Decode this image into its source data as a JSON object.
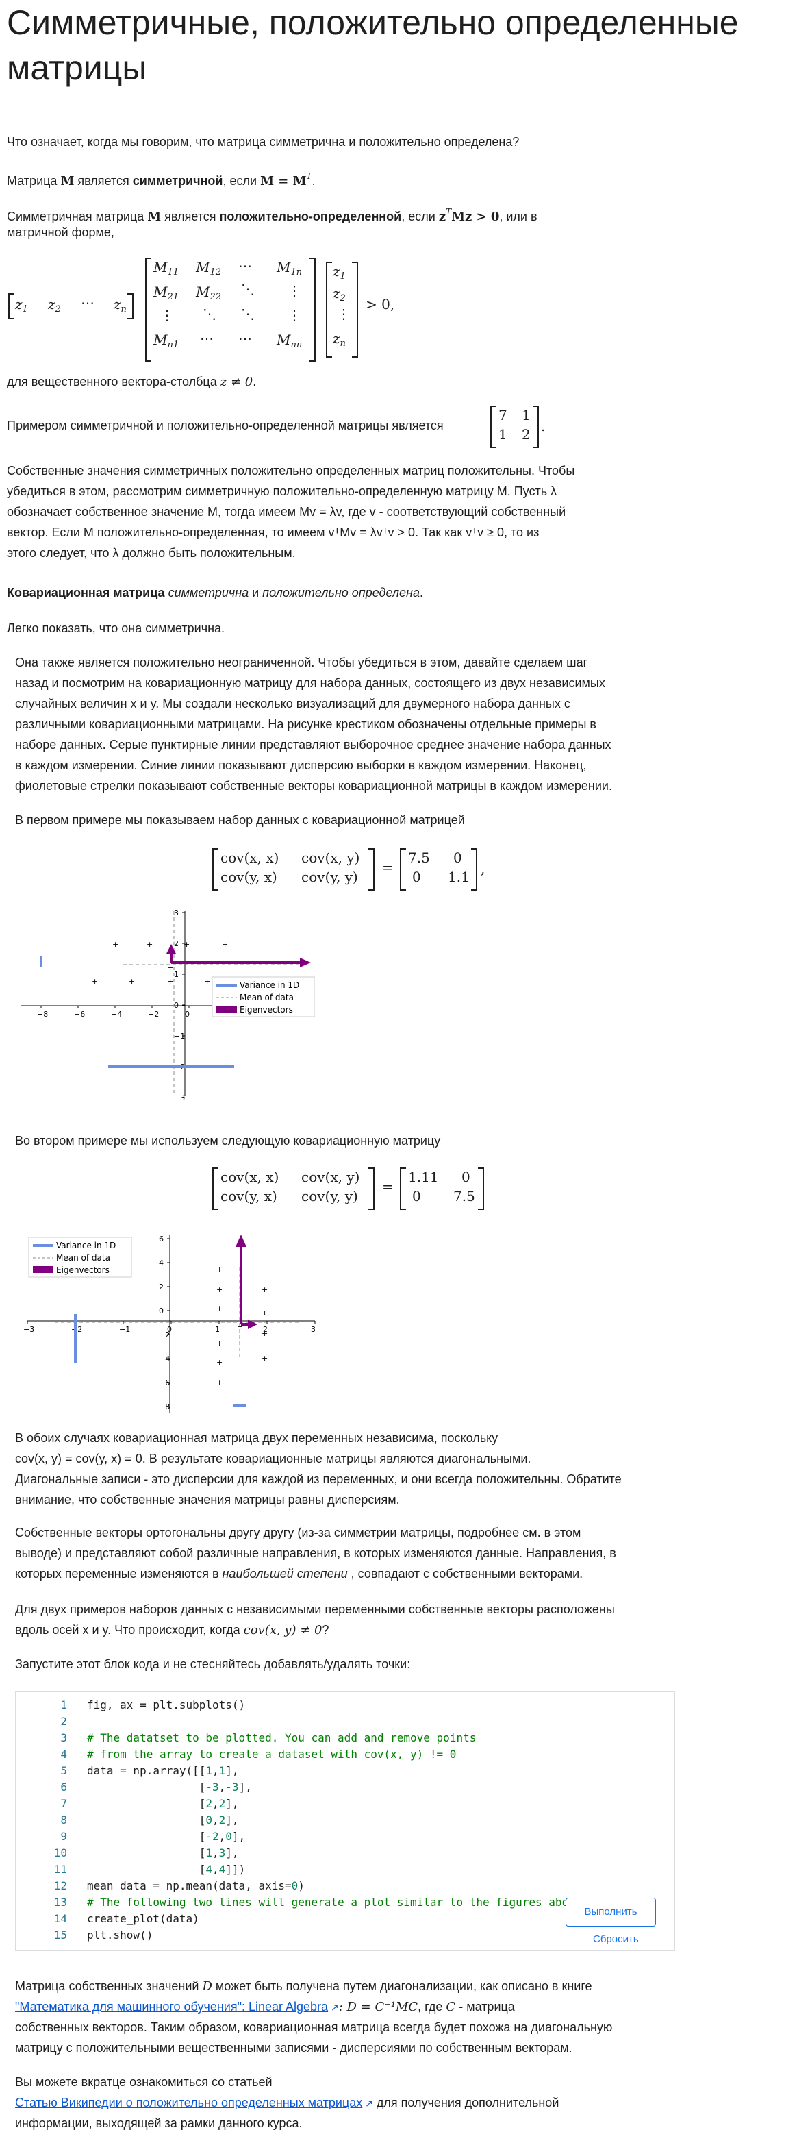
{
  "title": "Симметричные, положительно определенные матрицы",
  "intro_question": "Что означает, когда мы говорим, что матрица симметрична и положительно определена?",
  "sym_def": {
    "pre": "Матрица ",
    "M": "M",
    "mid": " является ",
    "bold": "симметричной",
    "post": ", если ",
    "eq": "M = M",
    "T": "T",
    "end": "."
  },
  "pd_def": {
    "pre": "Симметричная матрица ",
    "M": "M",
    "mid": " является ",
    "bold": "положительно-определенной",
    "post": ", если ",
    "z": "z",
    "T": "T",
    "Mz": "Mz > 0",
    "end": ", или в",
    "line2": "матричной форме,"
  },
  "big_eq": {
    "row": [
      "z",
      "z",
      "⋯",
      "z"
    ],
    "row_sub": [
      "1",
      "2",
      "",
      "n"
    ],
    "m11": "M",
    "m11s": "11",
    "m12": "M",
    "m12s": "12",
    "m1n": "M",
    "m1ns": "1n",
    "m21": "M",
    "m21s": "21",
    "m22": "M",
    "m22s": "22",
    "mn1": "M",
    "mn1s": "n1",
    "mnn": "M",
    "mnns": "nn",
    "col": [
      "z",
      "z",
      "⋮",
      "z"
    ],
    "col_sub": [
      "1",
      "2",
      "",
      "n"
    ],
    "gt": "> 0,"
  },
  "real_vec": {
    "text": "для вещественного вектора-столбца ",
    "cond": "z ≠ 0",
    "end": "."
  },
  "example_text": "Примером симметричной и положительно-определенной матрицы является",
  "example_matrix": [
    [
      "7",
      "1"
    ],
    [
      "1",
      "2"
    ]
  ],
  "eigen_par": [
    "Собственные значения симметричных положительно определенных матриц положительны. Чтобы",
    "убедиться в этом, рассмотрим симметричную положительно-определенную матрицу M. Пусть λ",
    "обозначает собственное значение M, тогда имеем Mv = λv, где v - соответствующий собственный",
    "вектор. Если M положительно-определенная, то имеем vᵀMv = λvᵀv > 0. Так как vᵀv ≥ 0, то из",
    "этого следует, что λ должно быть положительным."
  ],
  "cov_heading": {
    "bold": "Ковариационная матрица",
    "sp1": " ",
    "i1": "симметрична",
    "and": " и ",
    "i2": "положительно определена",
    "end": "."
  },
  "easy": "Легко показать, что она симметрична.",
  "also_par": [
    "Она также является положительно неограниченной. Чтобы убедиться в этом, давайте сделаем шаг",
    "назад и посмотрим на ковариационную матрицу для набора данных, состоящего из двух независимых",
    "случайных величин x и y. Мы создали несколько визуализаций для двумерного набора данных с",
    "различными ковариационными матрицами. На рисунке крестиком обозначены отдельные примеры в",
    "наборе данных. Серые пунктирные линии представляют выборочное среднее значение набора данных",
    "в каждом измерении. Синие линии показывают дисперсию выборки в каждом измерении. Наконец,",
    "фиолетовые стрелки показывают собственные векторы ковариационной матрицы в каждом измерении."
  ],
  "first_example": "В первом примере мы показываем набор данных с ковариационной матрицей",
  "cov1": {
    "a": "cov(x, x)",
    "b": "cov(x, y)",
    "c": "cov(y, x)",
    "d": "cov(y, y)",
    "r": [
      [
        "7.5",
        "0"
      ],
      [
        "0",
        "1.1"
      ]
    ],
    "end": ","
  },
  "second_example": "Во втором примере мы используем следующую ковариационную матрицу",
  "cov2": {
    "a": "cov(x, x)",
    "b": "cov(x, y)",
    "c": "cov(y, x)",
    "d": "cov(y, y)",
    "r": [
      [
        "1.11",
        "0"
      ],
      [
        "0",
        "7.5"
      ]
    ]
  },
  "legend": {
    "variance": "Variance in 1D",
    "mean": "Mean of data",
    "eig": "Eigenvectors"
  },
  "chart_data": [
    {
      "type": "scatter",
      "x": [
        -3,
        3,
        2,
        0,
        -2,
        1,
        4,
        -4,
        2,
        -6,
        -8
      ],
      "xticks": [
        "−8",
        "−6",
        "−4",
        "−2",
        "0",
        "2",
        "4"
      ],
      "yticks": [
        "3",
        "2",
        "1",
        "0",
        "−1",
        "−2",
        "−3"
      ],
      "xlim": [
        -8,
        4
      ],
      "ylim": [
        -3,
        3
      ]
    },
    {
      "type": "scatter",
      "xticks": [
        "−3",
        "−2",
        "−1",
        "0",
        "1",
        "2",
        "3"
      ],
      "yticks": [
        "6",
        "4",
        "2",
        "0",
        "−2",
        "−4",
        "−6",
        "−8"
      ],
      "xlim": [
        -3,
        3
      ],
      "ylim": [
        -8,
        6
      ]
    }
  ],
  "indep_par": [
    "В обоих случаях ковариационная матрица двух переменных независима, поскольку",
    "cov(x, y) = cov(y, x) = 0. В результате ковариационные матрицы являются диагональными.",
    "Диагональные записи - это дисперсии для каждой из переменных, и они всегда положительны. Обратите",
    "внимание, что собственные значения матрицы равны дисперсиям."
  ],
  "orth_par": [
    "Собственные векторы ортогональны другу другу (из-за симметрии матрицы, подробнее см. в этом",
    "выводе) и представляют собой различные направления, в которых изменяются данные. Направления, в",
    "которых переменные изменяются в ",
    "наибольшей степени",
    " , совпадают с собственными векторами."
  ],
  "two_par": [
    "Для двух примеров наборов данных с независимыми переменными собственные векторы расположены",
    "вдоль осей x и y. Что происходит, когда ",
    "cov(x, y) ≠ 0",
    "?"
  ],
  "run_block": "Запустите этот блок кода и не стесняйтесь добавлять/удалять точки:",
  "code_lines": [
    {
      "n": "1",
      "t": "fig, ax = plt.subplots()"
    },
    {
      "n": "2",
      "t": ""
    },
    {
      "n": "3",
      "t": "# The datatset to be plotted. You can add and remove points"
    },
    {
      "n": "4",
      "t": "# from the array to create a dataset with cov(x, y) != 0"
    },
    {
      "n": "5",
      "t": "data = np.array([[1,1],"
    },
    {
      "n": "6",
      "t": "                 [-3,-3],"
    },
    {
      "n": "7",
      "t": "                 [2,2],"
    },
    {
      "n": "8",
      "t": "                 [0,2],"
    },
    {
      "n": "9",
      "t": "                 [-2,0],"
    },
    {
      "n": "10",
      "t": "                 [1,3],"
    },
    {
      "n": "11",
      "t": "                 [4,4]])"
    },
    {
      "n": "12",
      "t": "mean_data = np.mean(data, axis=0)"
    },
    {
      "n": "13",
      "t": "# The following two lines will generate a plot similar to the figures above."
    },
    {
      "n": "14",
      "t": "create_plot(data)"
    },
    {
      "n": "15",
      "t": "plt.show()"
    }
  ],
  "run_button": "Выполнить",
  "reset_button": "Сбросить",
  "diag_par": {
    "l1a": "Матрица собственных значений ",
    "D": "D",
    "l1b": " может быть получена путем диагонализации, как описано в книге",
    "link": "\"Математика для машинного обучения\": Linear Algebra",
    "eq": ": D = C⁻¹MC",
    "l2b": ", где ",
    "C": "C",
    "l2c": " - матрица",
    "l3": "собственных векторов. Таким образом, ковариационная матрица всегда будет похожа на диагональную",
    "l4": "матрицу с положительными вещественными записями - дисперсиями по собственным векторам."
  },
  "wiki_par": {
    "l1": "Вы можете вкратце ознакомиться со статьей",
    "link": "Статью Википедии о положительно определенных матрицах",
    "l2": " для получения дополнительной",
    "l3": "информации, выходящей за рамки данного курса."
  }
}
